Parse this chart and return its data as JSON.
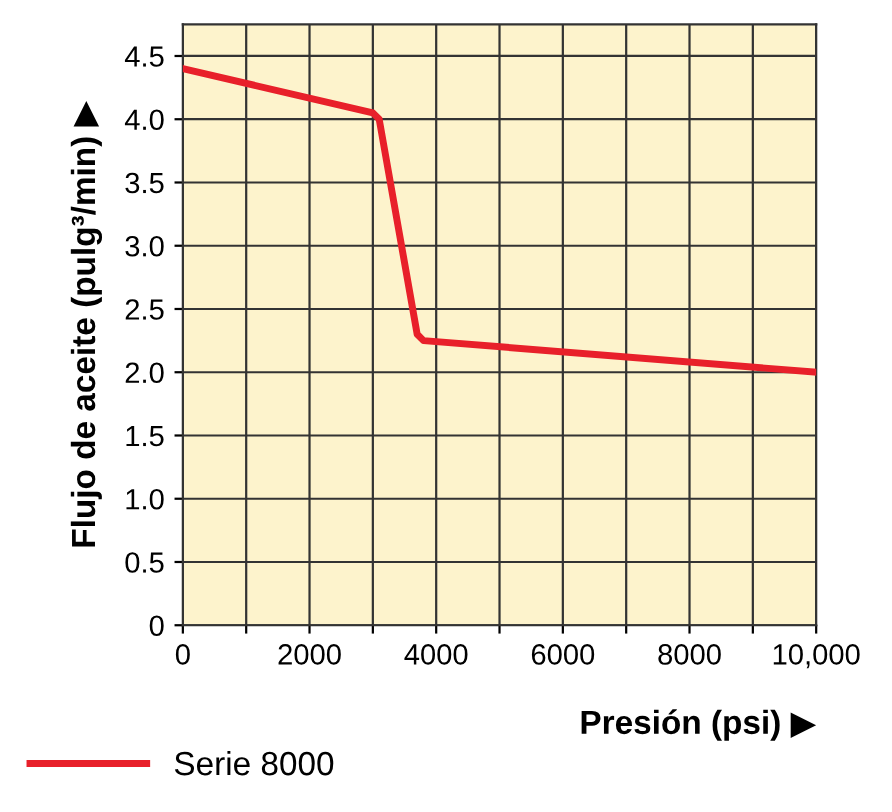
{
  "chart_data": {
    "type": "line",
    "xlabel": "Presión (psi) ▶",
    "ylabel": "Flujo de aceite (pulg³/min) ▶",
    "series": [
      {
        "name": "Serie 8000",
        "color": "#e8202a",
        "x": [
          0,
          3000,
          3100,
          3700,
          3800,
          10000
        ],
        "values": [
          4.4,
          4.05,
          4.0,
          2.3,
          2.25,
          2.0
        ]
      }
    ],
    "xlim": [
      0,
      10000
    ],
    "ylim": [
      0,
      4.75
    ],
    "xticks": [
      0,
      {
        "value": 1000,
        "label": null
      },
      2000,
      {
        "value": 3000,
        "label": null
      },
      4000,
      {
        "value": 5000,
        "label": null
      },
      6000,
      {
        "value": 7000,
        "label": null
      },
      8000,
      {
        "value": 9000,
        "label": null
      },
      {
        "value": 10000,
        "label": "10,000"
      }
    ],
    "yticks": [
      0,
      0.5,
      {
        "value": 1,
        "label": "1.0"
      },
      1.5,
      {
        "value": 2,
        "label": "2.0"
      },
      2.5,
      {
        "value": 3,
        "label": "3.0"
      },
      3.5,
      {
        "value": 4,
        "label": "4.0"
      },
      4.5
    ],
    "grid": true,
    "legend": "bottom",
    "marker": "none",
    "line_style": "solid"
  }
}
